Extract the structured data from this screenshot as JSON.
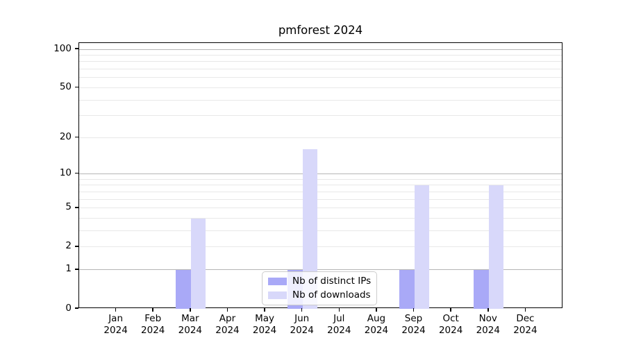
{
  "chart_data": {
    "type": "bar",
    "title": "pmforest 2024",
    "xlabel": "",
    "ylabel": "",
    "categories": [
      "Jan",
      "Feb",
      "Mar",
      "Apr",
      "May",
      "Jun",
      "Jul",
      "Aug",
      "Sep",
      "Oct",
      "Nov",
      "Dec"
    ],
    "x_tick_year": "2024",
    "series": [
      {
        "name": "Nb of distinct IPs",
        "color": "#a9a9f7",
        "values": [
          0,
          0,
          1,
          0,
          0,
          1,
          0,
          0,
          1,
          0,
          1,
          0
        ]
      },
      {
        "name": "Nb of downloads",
        "color": "#d8d8fa",
        "values": [
          0,
          0,
          4,
          0,
          0,
          16,
          0,
          0,
          8,
          0,
          8,
          0
        ]
      }
    ],
    "yscale": "log1p",
    "ylim": [
      0,
      112
    ],
    "y_ticks": [
      0,
      1,
      2,
      5,
      10,
      20,
      50,
      100
    ],
    "y_major_grid": [
      1,
      10,
      100
    ],
    "y_minor_grid": [
      2,
      3,
      4,
      5,
      6,
      7,
      8,
      9,
      20,
      30,
      40,
      50,
      60,
      70,
      80,
      90
    ],
    "grid": true,
    "legend_position": "lower center",
    "colors": {
      "grid_major": "#b5b5b5",
      "grid_minor": "#e8e8e8",
      "spine": "#000000",
      "text": "#000000"
    }
  }
}
